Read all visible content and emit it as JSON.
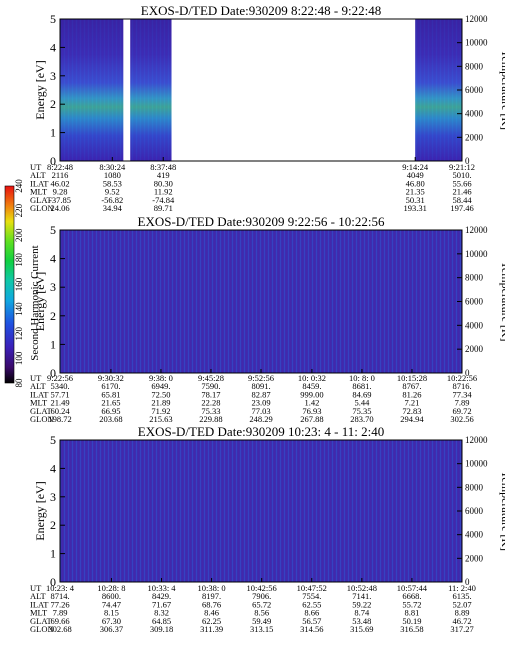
{
  "figure": {
    "colorbar": {
      "label": "Second Harmonic Current",
      "ticks": [
        "80",
        "100",
        "120",
        "140",
        "160",
        "180",
        "200",
        "220",
        "240"
      ]
    },
    "panel_axis": {
      "energy_label": "Energy [eV]",
      "temp_label": "Temperature [K]",
      "energy_ticks": [
        "0",
        "1",
        "2",
        "3",
        "4",
        "5"
      ],
      "temp_ticks": [
        "0",
        "2000",
        "4000",
        "6000",
        "8000",
        "10000",
        "12000"
      ]
    },
    "orbit_row_labels": [
      "UT",
      "ALT",
      "ILAT",
      "MLT",
      "GLAT",
      "GLON"
    ]
  },
  "chart_data": [
    {
      "type": "heatmap",
      "title": "EXOS-D/TED   Date:930209   8:22:48 - 9:22:48",
      "ylabel": "Energy [eV]",
      "y2label": "Temperature [K]",
      "ylim": [
        0,
        5
      ],
      "y2lim": [
        0,
        12000
      ],
      "colorbar_label": "Second Harmonic Current",
      "colorbar_range": [
        80,
        240
      ],
      "data_gaps": [
        [
          "8:32:00",
          "8:33:00"
        ],
        [
          "8:39:00",
          "9:14:24"
        ]
      ],
      "orbit_columns": [
        {
          "UT": "8:22:48",
          "ALT": "2116",
          "ILAT": "46.02",
          "MLT": "9.28",
          "GLAT": "-37.85",
          "GLON": "24.06"
        },
        {
          "UT": "8:30:24",
          "ALT": "1080",
          "ILAT": "58.53",
          "MLT": "9.52",
          "GLAT": "-56.82",
          "GLON": "34.94"
        },
        {
          "UT": "8:37:48",
          "ALT": "419",
          "ILAT": "80.30",
          "MLT": "11.92",
          "GLAT": "-74.84",
          "GLON": "89.71"
        },
        {
          "UT": "9:14:24",
          "ALT": "4049",
          "ILAT": "46.80",
          "MLT": "21.35",
          "GLAT": "50.31",
          "GLON": "193.31"
        },
        {
          "UT": "9:21:12",
          "ALT": "5010.",
          "ILAT": "55.66",
          "MLT": "21.46",
          "GLAT": "58.44",
          "GLON": "197.46"
        }
      ]
    },
    {
      "type": "heatmap",
      "title": "EXOS-D/TED   Date:930209   9:22:56 - 10:22:56",
      "ylabel": "Energy [eV]",
      "y2label": "Temperature [K]",
      "ylim": [
        0,
        5
      ],
      "y2lim": [
        0,
        12000
      ],
      "colorbar_label": "Second Harmonic Current",
      "colorbar_range": [
        80,
        240
      ],
      "orbit_columns": [
        {
          "UT": "9:22:56",
          "ALT": "5340.",
          "ILAT": "57.71",
          "MLT": "21.49",
          "GLAT": "60.24",
          "GLON": "198.72"
        },
        {
          "UT": "9:30:32",
          "ALT": "6170.",
          "ILAT": "65.81",
          "MLT": "21.65",
          "GLAT": "66.95",
          "GLON": "203.68"
        },
        {
          "UT": "9:38: 0",
          "ALT": "6949.",
          "ILAT": "72.50",
          "MLT": "21.89",
          "GLAT": "71.92",
          "GLON": "215.63"
        },
        {
          "UT": "9:45:28",
          "ALT": "7590.",
          "ILAT": "78.17",
          "MLT": "22.28",
          "GLAT": "75.33",
          "GLON": "229.88"
        },
        {
          "UT": "9:52:56",
          "ALT": "8091.",
          "ILAT": "82.87",
          "MLT": "23.09",
          "GLAT": "77.03",
          "GLON": "248.29"
        },
        {
          "UT": "10: 0:32",
          "ALT": "8459.",
          "ILAT": "999.00",
          "MLT": "1.42",
          "GLAT": "76.93",
          "GLON": "267.88"
        },
        {
          "UT": "10: 8: 0",
          "ALT": "8681.",
          "ILAT": "84.69",
          "MLT": "5.44",
          "GLAT": "75.35",
          "GLON": "283.70"
        },
        {
          "UT": "10:15:28",
          "ALT": "8767.",
          "ILAT": "81.26",
          "MLT": "7.21",
          "GLAT": "72.83",
          "GLON": "294.94"
        },
        {
          "UT": "10:22:56",
          "ALT": "8716.",
          "ILAT": "77.34",
          "MLT": "7.89",
          "GLAT": "69.72",
          "GLON": "302.56"
        }
      ]
    },
    {
      "type": "heatmap",
      "title": "EXOS-D/TED   Date:930209   10:23: 4 - 11: 2:40",
      "ylabel": "Energy [eV]",
      "y2label": "Temperature [K]",
      "ylim": [
        0,
        5
      ],
      "y2lim": [
        0,
        12000
      ],
      "colorbar_label": "Second Harmonic Current",
      "colorbar_range": [
        80,
        240
      ],
      "orbit_columns": [
        {
          "UT": "10:23: 4",
          "ALT": "8714.",
          "ILAT": "77.26",
          "MLT": "7.89",
          "GLAT": "69.66",
          "GLON": "302.68"
        },
        {
          "UT": "10:28: 8",
          "ALT": "8600.",
          "ILAT": "74.47",
          "MLT": "8.15",
          "GLAT": "67.30",
          "GLON": "306.37"
        },
        {
          "UT": "10:33: 4",
          "ALT": "8429.",
          "ILAT": "71.67",
          "MLT": "8.32",
          "GLAT": "64.85",
          "GLON": "309.18"
        },
        {
          "UT": "10:38: 0",
          "ALT": "8197.",
          "ILAT": "68.76",
          "MLT": "8.46",
          "GLAT": "62.25",
          "GLON": "311.39"
        },
        {
          "UT": "10:42:56",
          "ALT": "7906.",
          "ILAT": "65.72",
          "MLT": "8.56",
          "GLAT": "59.49",
          "GLON": "313.15"
        },
        {
          "UT": "10:47:52",
          "ALT": "7554.",
          "ILAT": "62.55",
          "MLT": "8.66",
          "GLAT": "56.57",
          "GLON": "314.56"
        },
        {
          "UT": "10:52:48",
          "ALT": "7141.",
          "ILAT": "59.22",
          "MLT": "8.74",
          "GLAT": "53.48",
          "GLON": "315.69"
        },
        {
          "UT": "10:57:44",
          "ALT": "6668.",
          "ILAT": "55.72",
          "MLT": "8.81",
          "GLAT": "50.19",
          "GLON": "316.58"
        },
        {
          "UT": "11: 2:40",
          "ALT": "6135.",
          "ILAT": "52.07",
          "MLT": "8.89",
          "GLAT": "46.72",
          "GLON": "317.27"
        }
      ]
    }
  ]
}
